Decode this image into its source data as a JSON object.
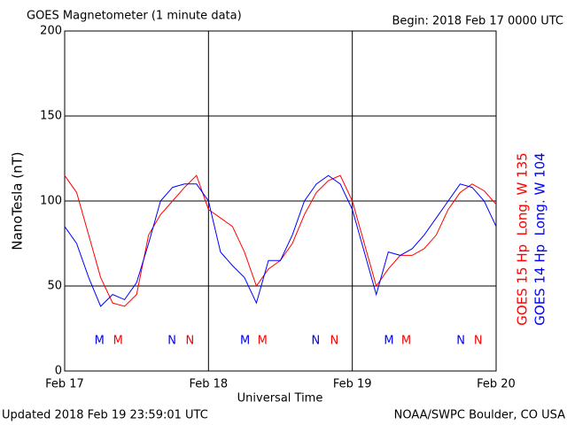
{
  "chart_data": {
    "type": "line",
    "title": "GOES Magnetometer (1 minute data)",
    "subtitle": "Begin:  2018 Feb 17 0000 UTC",
    "xlabel": "Universal Time",
    "ylabel": "NanoTesla (nT)",
    "footer_left": "Updated 2018 Feb 19 23:59:01 UTC",
    "footer_right": "NOAA/SWPC Boulder, CO USA",
    "x": [
      0,
      2,
      4,
      6,
      8,
      10,
      12,
      14,
      16,
      18,
      20,
      22,
      24,
      26,
      28,
      30,
      32,
      34,
      36,
      38,
      40,
      42,
      44,
      46,
      48,
      50,
      52,
      54,
      56,
      58,
      60,
      62,
      64,
      66,
      68,
      70,
      72
    ],
    "series": [
      {
        "name": "GOES 15 Hp  Long. W 135",
        "color": "#ff0000",
        "values": [
          115,
          105,
          80,
          55,
          40,
          38,
          45,
          80,
          92,
          100,
          108,
          115,
          95,
          90,
          85,
          70,
          50,
          60,
          65,
          75,
          92,
          105,
          112,
          115,
          100,
          75,
          50,
          60,
          68,
          68,
          72,
          80,
          95,
          105,
          110,
          106,
          98
        ]
      },
      {
        "name": "GOES 14 Hp  Long. W 104",
        "color": "#0000ff",
        "values": [
          85,
          75,
          55,
          38,
          45,
          42,
          52,
          75,
          100,
          108,
          110,
          110,
          100,
          70,
          62,
          55,
          40,
          65,
          65,
          80,
          100,
          110,
          115,
          110,
          95,
          70,
          45,
          70,
          68,
          72,
          80,
          90,
          100,
          110,
          108,
          100,
          85
        ]
      }
    ],
    "annotations": [
      {
        "text": "M",
        "x": 5.8,
        "color": "#0000ff"
      },
      {
        "text": "M",
        "x": 8.9,
        "color": "#ff0000"
      },
      {
        "text": "N",
        "x": 17.9,
        "color": "#0000ff"
      },
      {
        "text": "N",
        "x": 20.9,
        "color": "#ff0000"
      },
      {
        "text": "M",
        "x": 30.1,
        "color": "#0000ff"
      },
      {
        "text": "M",
        "x": 33.0,
        "color": "#ff0000"
      },
      {
        "text": "N",
        "x": 41.9,
        "color": "#0000ff"
      },
      {
        "text": "N",
        "x": 45.0,
        "color": "#ff0000"
      },
      {
        "text": "M",
        "x": 54.1,
        "color": "#0000ff"
      },
      {
        "text": "M",
        "x": 57.0,
        "color": "#ff0000"
      },
      {
        "text": "N",
        "x": 66.1,
        "color": "#0000ff"
      },
      {
        "text": "N",
        "x": 69.0,
        "color": "#ff0000"
      }
    ],
    "xlim": [
      0,
      72
    ],
    "xticks": [
      {
        "value": 0,
        "label": "Feb 17"
      },
      {
        "value": 24,
        "label": "Feb 18"
      },
      {
        "value": 48,
        "label": "Feb 19"
      },
      {
        "value": 72,
        "label": "Feb 20"
      }
    ],
    "ylim": [
      0,
      200
    ],
    "yticks": [
      0,
      50,
      100,
      150,
      200
    ],
    "grid": true
  }
}
